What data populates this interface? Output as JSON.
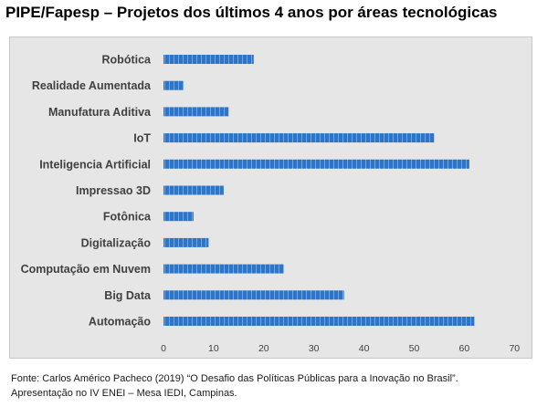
{
  "title": "PIPE/Fapesp – Projetos dos últimos 4 anos por áreas tecnológicas",
  "source": {
    "line1": "Fonte: Carlos Américo Pacheco (2019) “O Desafio das Políticas Públicas para a Inovação no Brasil”.",
    "line2": "Apresentação no IV ENEI – Mesa IEDI, Campinas."
  },
  "colors": {
    "bar": "#2e75c8",
    "bar_highlight": "#6aa6e6",
    "panel": "#e6e6e6"
  },
  "chart_data": {
    "type": "bar",
    "orientation": "horizontal",
    "categories": [
      "Robótica",
      "Realidade Aumentada",
      "Manufatura Aditiva",
      "IoT",
      "Inteligencia Artificial",
      "Impressao 3D",
      "Fotônica",
      "Digitalização",
      "Computação em Nuvem",
      "Big Data",
      "Automação"
    ],
    "values": [
      18,
      4,
      13,
      54,
      61,
      12,
      6,
      9,
      24,
      36,
      62
    ],
    "xlim": [
      0,
      70
    ],
    "xticks": [
      "0",
      "10",
      "20",
      "30",
      "40",
      "50",
      "60",
      "70"
    ],
    "grid": false,
    "legend": "none"
  }
}
